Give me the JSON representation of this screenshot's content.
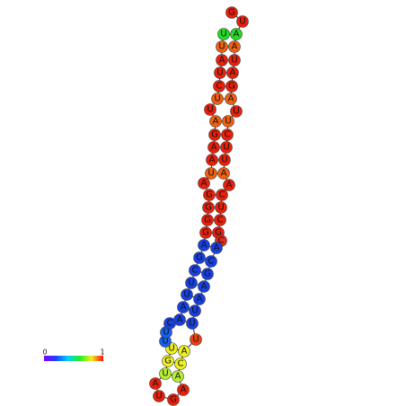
{
  "nodes": [
    {
      "label": "G",
      "color": "#e8200c"
    },
    {
      "label": "U",
      "color": "#e8200c"
    },
    {
      "label": "A",
      "color": "#22dd22"
    },
    {
      "label": "A",
      "color": "#f06010"
    },
    {
      "label": "U",
      "color": "#e8200c"
    },
    {
      "label": "A",
      "color": "#e8200c"
    },
    {
      "label": "G",
      "color": "#e8200c"
    },
    {
      "label": "A",
      "color": "#f06010"
    },
    {
      "label": "U",
      "color": "#e8200c"
    },
    {
      "label": "U",
      "color": "#f06010"
    },
    {
      "label": "C",
      "color": "#e8200c"
    },
    {
      "label": "U",
      "color": "#e8200c"
    },
    {
      "label": "U",
      "color": "#e8200c"
    },
    {
      "label": "A",
      "color": "#f06010"
    },
    {
      "label": "A",
      "color": "#e8200c"
    },
    {
      "label": "C",
      "color": "#e8200c"
    },
    {
      "label": "U",
      "color": "#e8200c"
    },
    {
      "label": "C",
      "color": "#e8200c"
    },
    {
      "label": "G",
      "color": "#e8200c"
    },
    {
      "label": "C",
      "color": "#e02818"
    },
    {
      "label": "A",
      "color": "#1840e0"
    },
    {
      "label": "C",
      "color": "#1840e0"
    },
    {
      "label": "G",
      "color": "#1840e0"
    },
    {
      "label": "A",
      "color": "#1840e0"
    },
    {
      "label": "A",
      "color": "#1840e0"
    },
    {
      "label": "U",
      "color": "#1840e0"
    },
    {
      "label": "U",
      "color": "#1840e0"
    },
    {
      "label": "U",
      "color": "#f04010"
    },
    {
      "label": "A",
      "color": "#eef020"
    },
    {
      "label": "C",
      "color": "#eef020"
    },
    {
      "label": "A",
      "color": "#b8f030"
    },
    {
      "label": "A",
      "color": "#e8200c"
    },
    {
      "label": "G",
      "color": "#e8200c"
    },
    {
      "label": "U",
      "color": "#e8200c"
    },
    {
      "label": "A",
      "color": "#e8200c"
    },
    {
      "label": "U",
      "color": "#b8f030"
    },
    {
      "label": "G",
      "color": "#eef020"
    },
    {
      "label": "U",
      "color": "#eef020"
    },
    {
      "label": "U",
      "color": "#1860f0"
    },
    {
      "label": "U",
      "color": "#1860f0"
    },
    {
      "label": "C",
      "color": "#1840e0"
    },
    {
      "label": "A",
      "color": "#1840e0"
    },
    {
      "label": "A",
      "color": "#1840e0"
    },
    {
      "label": "U",
      "color": "#1840e0"
    },
    {
      "label": "U",
      "color": "#1840e0"
    },
    {
      "label": "C",
      "color": "#1840e0"
    },
    {
      "label": "G",
      "color": "#1840e0"
    },
    {
      "label": "A",
      "color": "#1840e0"
    },
    {
      "label": "G",
      "color": "#e8200c"
    },
    {
      "label": "G",
      "color": "#e8200c"
    },
    {
      "label": "G",
      "color": "#e8200c"
    },
    {
      "label": "G",
      "color": "#e8200c"
    },
    {
      "label": "A",
      "color": "#e8200c"
    },
    {
      "label": "U",
      "color": "#f06010"
    },
    {
      "label": "A",
      "color": "#e8200c"
    },
    {
      "label": "A",
      "color": "#e8200c"
    },
    {
      "label": "G",
      "color": "#e8200c"
    },
    {
      "label": "A",
      "color": "#f06010"
    },
    {
      "label": "U",
      "color": "#e8200c"
    },
    {
      "label": "U",
      "color": "#f06010"
    },
    {
      "label": "C",
      "color": "#e8200c"
    },
    {
      "label": "U",
      "color": "#e8200c"
    },
    {
      "label": "A",
      "color": "#e8200c"
    },
    {
      "label": "U",
      "color": "#f06010"
    },
    {
      "label": "U",
      "color": "#22dd22"
    }
  ],
  "scale": {
    "min": 0,
    "max": 1
  }
}
